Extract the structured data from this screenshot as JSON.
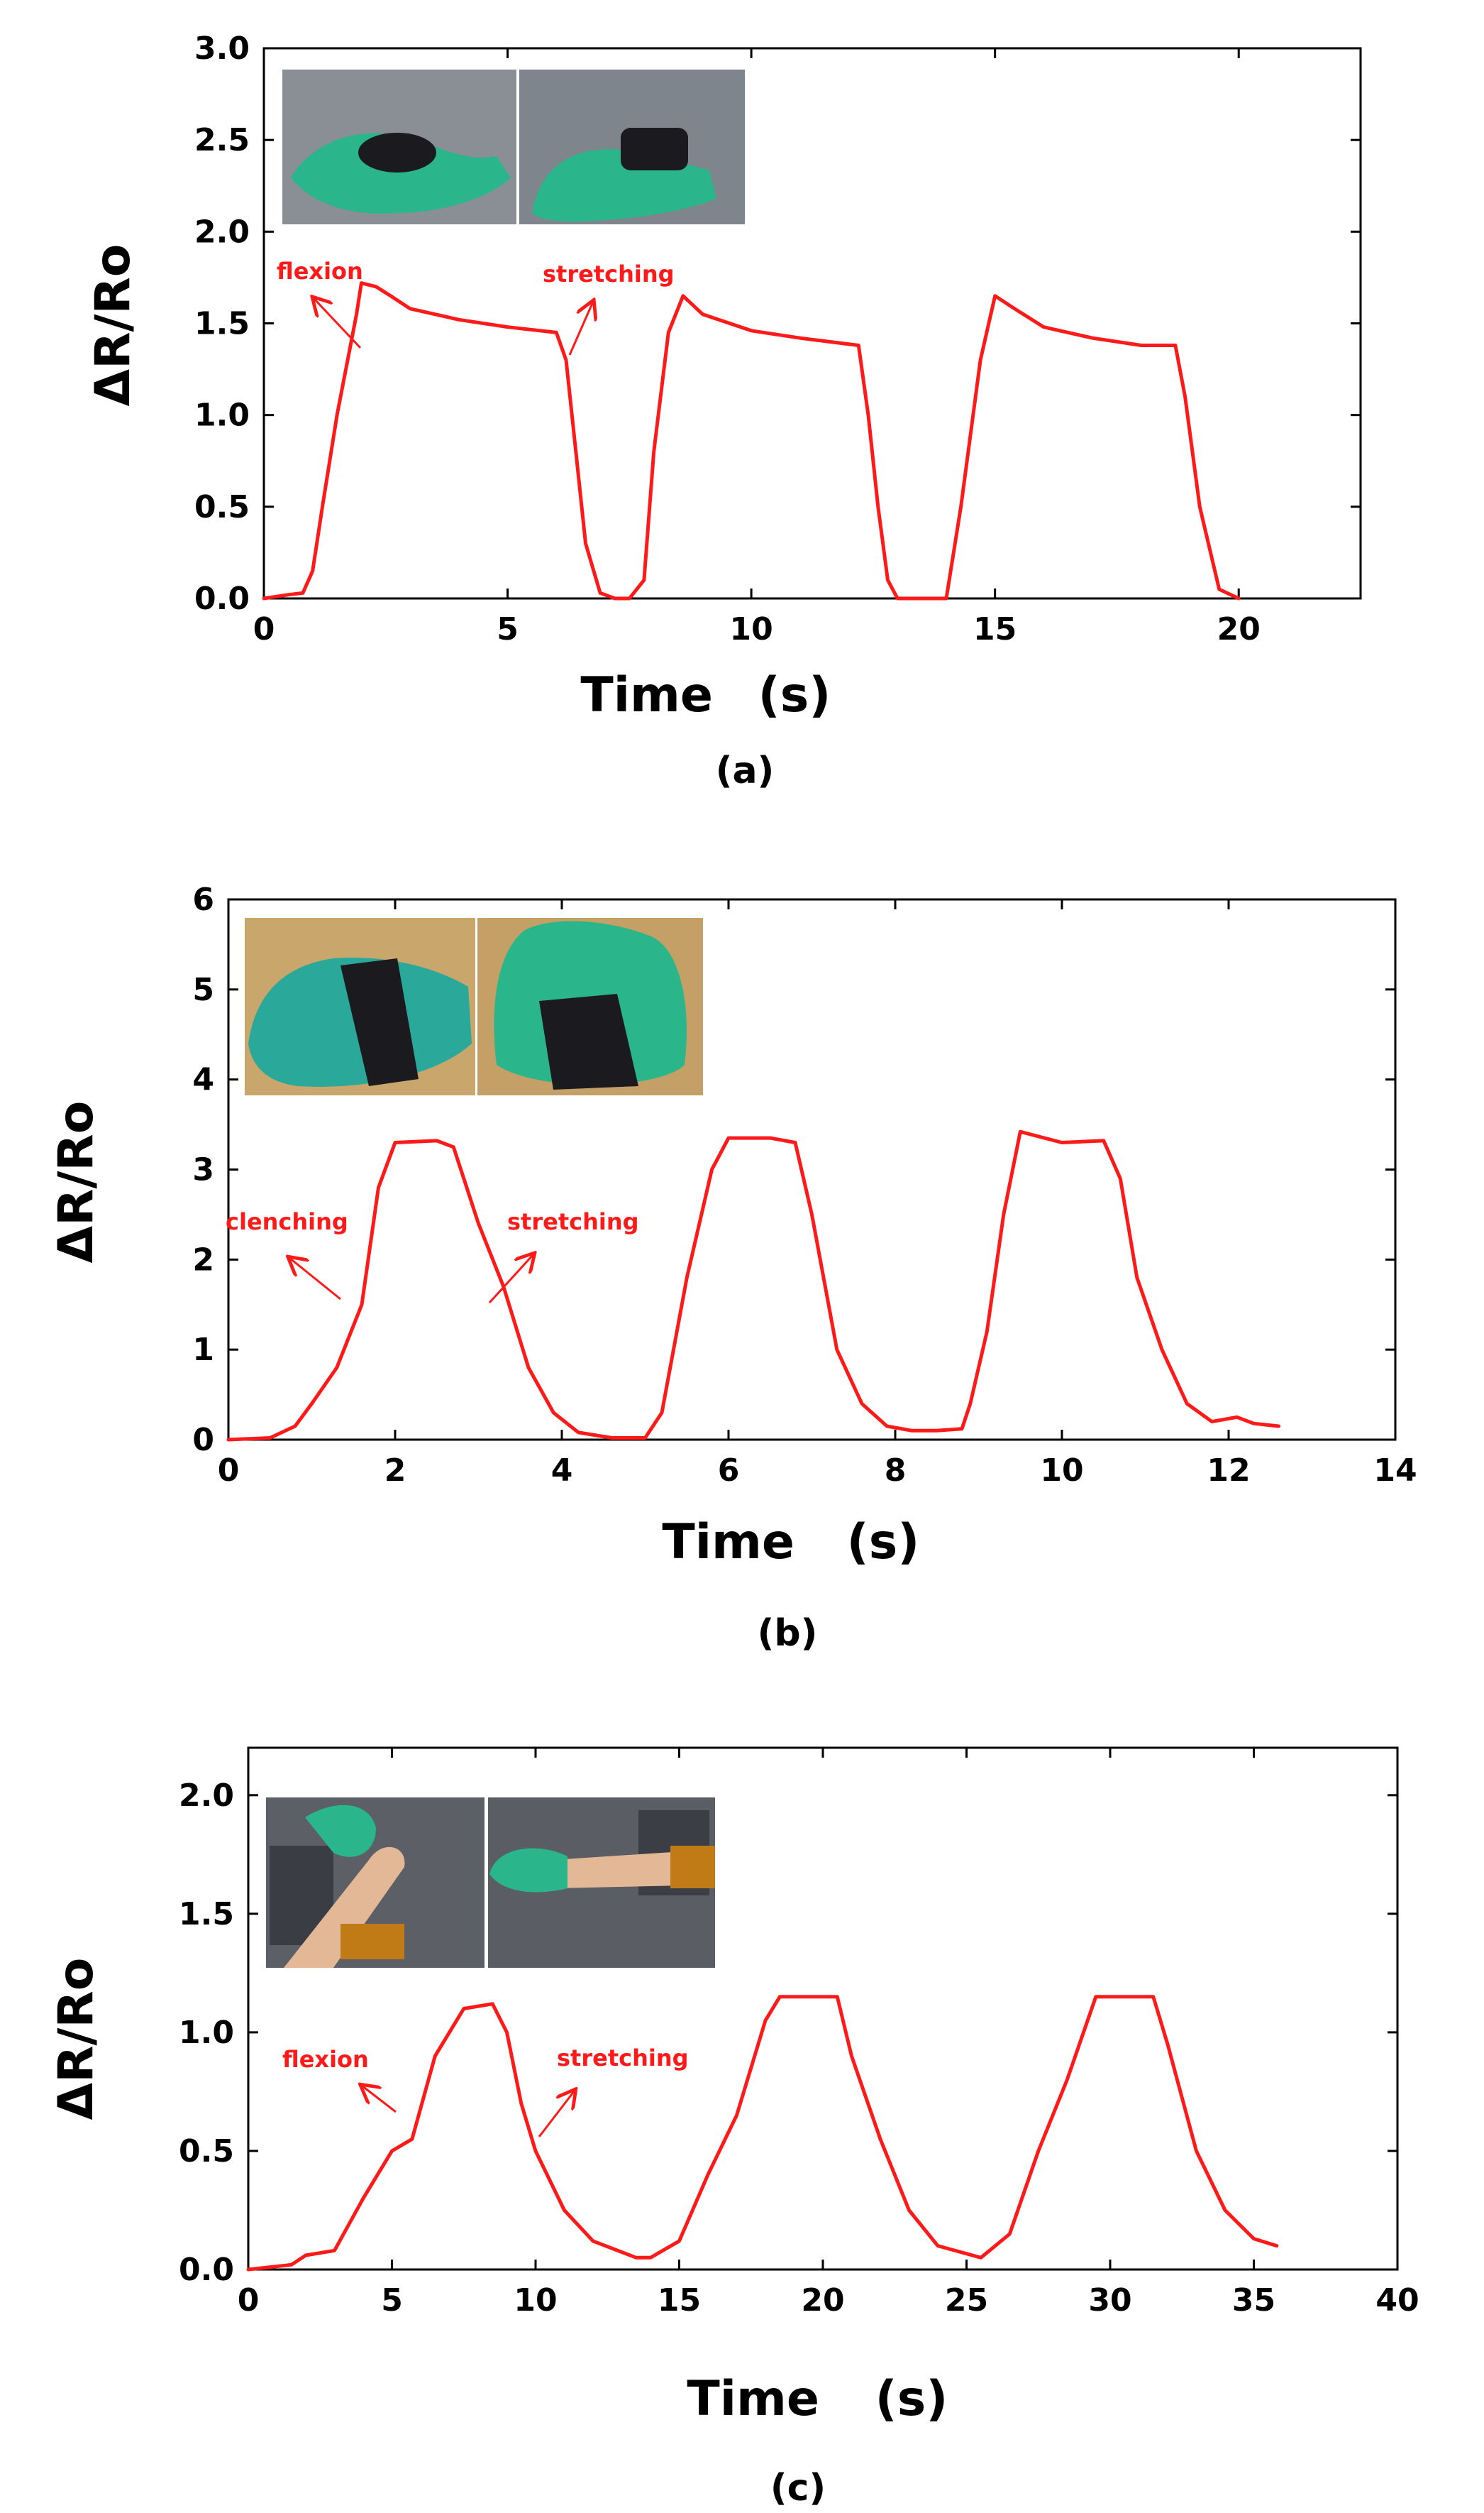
{
  "colors": {
    "series": "#ff1a1a",
    "axis": "#000000",
    "photo_background": "#8a8f96",
    "glove": "#2bb58a",
    "sensor_tape": "#1b1b1f",
    "wood": "#c9a66b",
    "copper_tape": "#c07a16",
    "skin": "#e3b896"
  },
  "chart_data": [
    {
      "type": "line",
      "panel_label": "(a)",
      "xlabel": "Time",
      "xunit": "(s)",
      "ylabel": "ΔR/Ro",
      "xlim": [
        0,
        22.5
      ],
      "ylim": [
        0,
        3.0
      ],
      "x_ticks": [
        0,
        5,
        10,
        15,
        20
      ],
      "y_ticks": [
        0.0,
        0.5,
        1.0,
        1.5,
        2.0,
        2.5,
        3.0
      ],
      "x_tick_labels": [
        "0",
        "5",
        "10",
        "15",
        "20"
      ],
      "y_tick_labels": [
        "0.0",
        "0.5",
        "1.0",
        "1.5",
        "2.0",
        "2.5",
        "3.0"
      ],
      "grid": false,
      "series": [
        {
          "x": [
            0,
            0.5,
            0.8,
            1.0,
            1.2,
            1.5,
            1.9,
            2.0,
            2.3,
            2.6,
            3.0,
            4.0,
            5.0,
            6.0,
            6.2,
            6.4,
            6.6,
            6.9,
            7.2,
            7.5,
            7.8,
            8.0,
            8.3,
            8.6,
            9.0,
            10.0,
            11.0,
            12.2,
            12.4,
            12.6,
            12.8,
            13.0,
            13.2,
            13.5,
            14.0,
            14.3,
            14.7,
            15.0,
            15.4,
            16.0,
            17.0,
            18.0,
            18.7,
            18.9,
            19.2,
            19.6,
            20.0
          ],
          "y": [
            0.0,
            0.02,
            0.03,
            0.15,
            0.5,
            1.0,
            1.55,
            1.72,
            1.7,
            1.65,
            1.58,
            1.52,
            1.48,
            1.45,
            1.3,
            0.8,
            0.3,
            0.03,
            0.0,
            0.0,
            0.1,
            0.8,
            1.45,
            1.65,
            1.55,
            1.46,
            1.42,
            1.38,
            1.0,
            0.5,
            0.1,
            0.0,
            0.0,
            0.0,
            0.0,
            0.5,
            1.3,
            1.65,
            1.58,
            1.48,
            1.42,
            1.38,
            1.38,
            1.1,
            0.5,
            0.05,
            0.0
          ]
        }
      ],
      "annotations": [
        "flexion",
        "stretching"
      ]
    },
    {
      "type": "line",
      "panel_label": "(b)",
      "xlabel": "Time",
      "xunit": "(s)",
      "ylabel": "ΔR/Ro",
      "xlim": [
        0,
        14
      ],
      "ylim": [
        0,
        6
      ],
      "x_ticks": [
        0,
        2,
        4,
        6,
        8,
        10,
        12,
        14
      ],
      "y_ticks": [
        0,
        1,
        2,
        3,
        4,
        5,
        6
      ],
      "x_tick_labels": [
        "0",
        "2",
        "4",
        "6",
        "8",
        "10",
        "12",
        "14"
      ],
      "y_tick_labels": [
        "0",
        "1",
        "2",
        "3",
        "4",
        "5",
        "6"
      ],
      "grid": false,
      "series": [
        {
          "x": [
            0,
            0.5,
            0.8,
            1.0,
            1.3,
            1.6,
            1.8,
            2.0,
            2.5,
            2.7,
            3.0,
            3.3,
            3.6,
            3.9,
            4.2,
            4.6,
            5.0,
            5.2,
            5.5,
            5.8,
            6.0,
            6.5,
            6.8,
            7.0,
            7.3,
            7.6,
            7.9,
            8.2,
            8.5,
            8.8,
            8.9,
            9.1,
            9.3,
            9.5,
            10.0,
            10.5,
            10.7,
            10.9,
            11.2,
            11.5,
            11.8,
            12.1,
            12.3,
            12.6
          ],
          "y": [
            0.0,
            0.02,
            0.15,
            0.4,
            0.8,
            1.5,
            2.8,
            3.3,
            3.32,
            3.25,
            2.4,
            1.7,
            0.8,
            0.3,
            0.08,
            0.02,
            0.02,
            0.3,
            1.8,
            3.0,
            3.35,
            3.35,
            3.3,
            2.5,
            1.0,
            0.4,
            0.15,
            0.1,
            0.1,
            0.12,
            0.4,
            1.2,
            2.5,
            3.42,
            3.3,
            3.32,
            2.9,
            1.8,
            1.0,
            0.4,
            0.2,
            0.25,
            0.18,
            0.15
          ]
        }
      ],
      "annotations": [
        "clenching",
        "stretching"
      ]
    },
    {
      "type": "line",
      "panel_label": "(c)",
      "xlabel": "Time",
      "xunit": "(s)",
      "ylabel": "ΔR/Ro",
      "xlim": [
        0,
        40
      ],
      "ylim": [
        0,
        2.2
      ],
      "x_ticks": [
        0,
        5,
        10,
        15,
        20,
        25,
        30,
        35,
        40
      ],
      "y_ticks": [
        0.0,
        0.5,
        1.0,
        1.5,
        2.0
      ],
      "x_tick_labels": [
        "0",
        "5",
        "10",
        "15",
        "20",
        "25",
        "30",
        "35",
        "40"
      ],
      "y_tick_labels": [
        "0.0",
        "0.5",
        "1.0",
        "1.5",
        "2.0"
      ],
      "grid": false,
      "series": [
        {
          "x": [
            0,
            1.5,
            2.0,
            3.0,
            4.0,
            5.0,
            5.7,
            6.5,
            7.5,
            8.5,
            9.0,
            9.5,
            10.0,
            11.0,
            12.0,
            13.5,
            14.0,
            15.0,
            16.0,
            17.0,
            18.0,
            18.5,
            20.5,
            21.0,
            22.0,
            23.0,
            24.0,
            25.5,
            26.5,
            27.5,
            28.5,
            29.5,
            31.5,
            32.0,
            33.0,
            34.0,
            35.0,
            35.8
          ],
          "y": [
            0.0,
            0.02,
            0.06,
            0.08,
            0.3,
            0.5,
            0.55,
            0.9,
            1.1,
            1.12,
            1.0,
            0.7,
            0.5,
            0.25,
            0.12,
            0.05,
            0.05,
            0.12,
            0.4,
            0.65,
            1.05,
            1.15,
            1.15,
            0.9,
            0.55,
            0.25,
            0.1,
            0.05,
            0.15,
            0.5,
            0.8,
            1.15,
            1.15,
            0.95,
            0.5,
            0.25,
            0.13,
            0.1
          ]
        }
      ],
      "annotations": [
        "flexion",
        "stretching"
      ]
    }
  ]
}
